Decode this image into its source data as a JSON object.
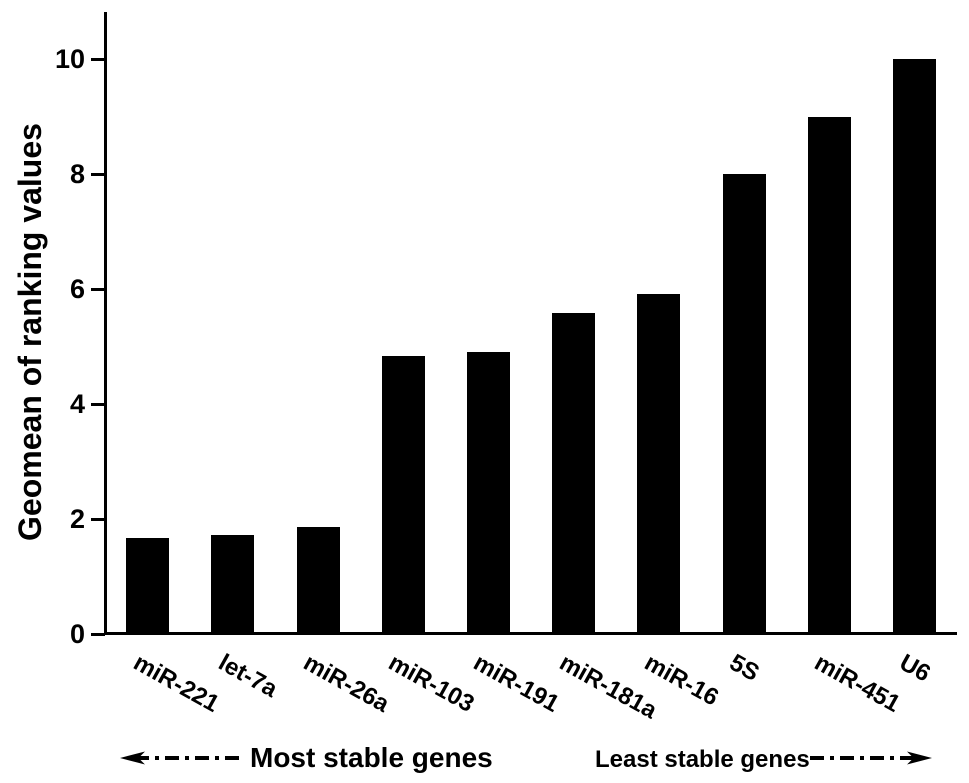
{
  "figure": {
    "background_color": "#ffffff",
    "ink_color": "#000000"
  },
  "chart_data": {
    "type": "bar",
    "title": "",
    "xlabel": "",
    "ylabel": "Geomean of ranking values",
    "categories": [
      "miR-221",
      "let-7a",
      "miR-26a",
      "miR-103",
      "miR-191",
      "miR-181a",
      "miR-16",
      "5S",
      "miR-451",
      "U6"
    ],
    "values": [
      1.67,
      1.72,
      1.86,
      4.83,
      4.9,
      5.59,
      5.92,
      8.0,
      9.0,
      10.0
    ],
    "bar_color": "#000000",
    "ylim": [
      0,
      10.8
    ],
    "yticks": [
      0,
      2,
      4,
      6,
      8,
      10
    ],
    "grid": false,
    "legend": null,
    "xtick_rotation_deg": 29,
    "annotations": {
      "left": {
        "label": "Most stable genes",
        "arrow_direction": "left",
        "line_style": "dash-dot"
      },
      "right": {
        "label": "Least stable genes",
        "arrow_direction": "right",
        "line_style": "dash-dot"
      }
    }
  }
}
